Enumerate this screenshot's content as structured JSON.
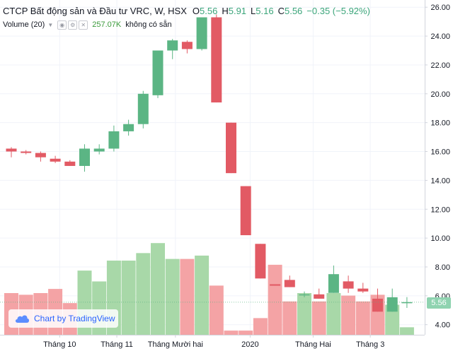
{
  "legend": {
    "title": "CTCP Bất động sản và Đầu tư VRC, W, HSX",
    "open_label": "O",
    "open": "5.56",
    "high_label": "H",
    "high": "5.91",
    "low_label": "L",
    "low": "5.16",
    "close_label": "C",
    "close": "5.56",
    "change": "−0.35 (−5.92%)"
  },
  "volume_legend": {
    "name": "Volume (20)",
    "value": "257.07K",
    "ma_text": "không có sẵn"
  },
  "watermark": "Chart by TradingView",
  "last_price_tag": "5.56",
  "colors": {
    "up": "#5bb584",
    "down": "#e25a64",
    "vol_up": "#a8d8a8",
    "vol_down": "#f4a3a5",
    "axis_text": "#131722"
  },
  "chart_data": {
    "type": "candlestick",
    "title": "CTCP Bất động sản và Đầu tư VRC, W, HSX",
    "ylim": [
      3.3,
      26.5
    ],
    "y_ticks": [
      "4.00",
      "6.00",
      "8.00",
      "10.00",
      "12.00",
      "14.00",
      "16.00",
      "18.00",
      "20.00",
      "22.00",
      "24.00",
      "26.00"
    ],
    "x_ticks": [
      {
        "label": "Tháng 10",
        "index": 3.3
      },
      {
        "label": "Tháng 11",
        "index": 7.2
      },
      {
        "label": "Tháng Mười hai",
        "index": 11.2
      },
      {
        "label": "2020",
        "index": 16.3
      },
      {
        "label": "Tháng Hai",
        "index": 20.6
      },
      {
        "label": "Tháng 3",
        "index": 24.5
      }
    ],
    "candles": [
      {
        "o": 16.2,
        "h": 16.3,
        "l": 15.6,
        "c": 16.0
      },
      {
        "o": 16.0,
        "h": 16.1,
        "l": 15.8,
        "c": 15.9
      },
      {
        "o": 15.9,
        "h": 16.0,
        "l": 15.3,
        "c": 15.6
      },
      {
        "o": 15.5,
        "h": 15.7,
        "l": 15.2,
        "c": 15.3
      },
      {
        "o": 15.3,
        "h": 15.4,
        "l": 15.0,
        "c": 15.0
      },
      {
        "o": 15.0,
        "h": 16.5,
        "l": 14.6,
        "c": 16.2
      },
      {
        "o": 16.0,
        "h": 16.5,
        "l": 15.8,
        "c": 16.2
      },
      {
        "o": 16.2,
        "h": 17.8,
        "l": 16.0,
        "c": 17.4
      },
      {
        "o": 17.4,
        "h": 18.2,
        "l": 17.1,
        "c": 17.9
      },
      {
        "o": 17.9,
        "h": 20.2,
        "l": 17.6,
        "c": 20.0
      },
      {
        "o": 19.9,
        "h": 23.0,
        "l": 19.7,
        "c": 23.0
      },
      {
        "o": 23.0,
        "h": 23.8,
        "l": 22.4,
        "c": 23.7
      },
      {
        "o": 23.6,
        "h": 23.7,
        "l": 22.8,
        "c": 23.1
      },
      {
        "o": 23.1,
        "h": 25.3,
        "l": 23.0,
        "c": 25.3
      },
      {
        "o": 25.3,
        "h": 25.5,
        "l": 19.4,
        "c": 19.4
      },
      {
        "o": 18.0,
        "h": 18.0,
        "l": 14.5,
        "c": 14.5
      },
      {
        "o": 13.6,
        "h": 13.6,
        "l": 10.2,
        "c": 10.2
      },
      {
        "o": 9.6,
        "h": 9.6,
        "l": 7.2,
        "c": 7.2
      },
      {
        "o": 6.8,
        "h": 6.8,
        "l": 6.7,
        "c": 6.7
      },
      {
        "o": 7.1,
        "h": 7.4,
        "l": 6.6,
        "c": 6.6
      },
      {
        "o": 6.1,
        "h": 6.3,
        "l": 5.9,
        "c": 6.1
      },
      {
        "o": 6.1,
        "h": 6.5,
        "l": 5.8,
        "c": 5.8
      },
      {
        "o": 6.2,
        "h": 8.1,
        "l": 6.2,
        "c": 7.5
      },
      {
        "o": 7.0,
        "h": 7.4,
        "l": 6.2,
        "c": 6.5
      },
      {
        "o": 6.5,
        "h": 6.9,
        "l": 6.2,
        "c": 6.3
      },
      {
        "o": 5.8,
        "h": 6.5,
        "l": 4.9,
        "c": 4.9
      },
      {
        "o": 4.9,
        "h": 6.5,
        "l": 4.9,
        "c": 5.9
      },
      {
        "o": 5.56,
        "h": 5.91,
        "l": 5.16,
        "c": 5.56
      }
    ],
    "volume": [
      {
        "v": 0.5,
        "up": false
      },
      {
        "v": 0.48,
        "up": false
      },
      {
        "v": 0.5,
        "up": false
      },
      {
        "v": 0.55,
        "up": false
      },
      {
        "v": 0.38,
        "up": false
      },
      {
        "v": 0.77,
        "up": true
      },
      {
        "v": 0.64,
        "up": true
      },
      {
        "v": 0.89,
        "up": true
      },
      {
        "v": 0.89,
        "up": true
      },
      {
        "v": 0.98,
        "up": true
      },
      {
        "v": 1.1,
        "up": true
      },
      {
        "v": 0.91,
        "up": true
      },
      {
        "v": 0.91,
        "up": false
      },
      {
        "v": 0.95,
        "up": true
      },
      {
        "v": 0.59,
        "up": false
      },
      {
        "v": 0.05,
        "up": false
      },
      {
        "v": 0.05,
        "up": false
      },
      {
        "v": 0.2,
        "up": false
      },
      {
        "v": 0.84,
        "up": false
      },
      {
        "v": 0.4,
        "up": false
      },
      {
        "v": 0.5,
        "up": true
      },
      {
        "v": 0.4,
        "up": false
      },
      {
        "v": 0.5,
        "up": true
      },
      {
        "v": 0.47,
        "up": false
      },
      {
        "v": 0.4,
        "up": false
      },
      {
        "v": 0.48,
        "up": false
      },
      {
        "v": 0.36,
        "up": true
      },
      {
        "v": 0.09,
        "up": true
      }
    ]
  }
}
